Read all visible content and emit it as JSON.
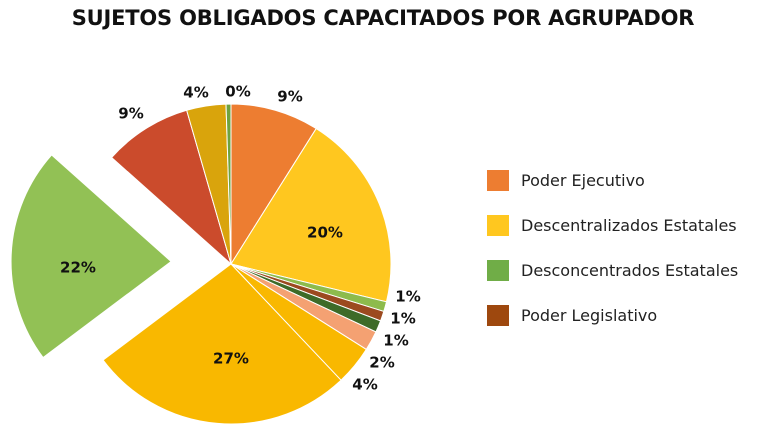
{
  "chart_data": {
    "type": "pie",
    "title": "SUJETOS OBLIGADOS CAPACITADOS POR AGRUPADOR",
    "slices": [
      {
        "label": "9%",
        "value": 9,
        "color": "#ED7D31"
      },
      {
        "label": "20%",
        "value": 20,
        "color": "#FFC71F"
      },
      {
        "label": "1%",
        "value": 1,
        "color": "#8DBB4C"
      },
      {
        "label": "1%",
        "value": 1,
        "color": "#9C4A1F"
      },
      {
        "label": "1%",
        "value": 1.2,
        "color": "#3E6B28"
      },
      {
        "label": "2%",
        "value": 2,
        "color": "#F4A172"
      },
      {
        "label": "4%",
        "value": 4,
        "color": "#F9B800"
      },
      {
        "label": "27%",
        "value": 27,
        "color": "#F9B800"
      },
      {
        "label": "22%",
        "value": 22,
        "color": "#92C155"
      },
      {
        "label": "9%",
        "value": 9,
        "color": "#CB4B2C"
      },
      {
        "label": "4%",
        "value": 4,
        "color": "#D9A40C"
      },
      {
        "label": "0%",
        "value": 0.5,
        "color": "#6FA33E"
      }
    ],
    "legend": [
      {
        "label": "Poder Ejecutivo",
        "color": "#ED7D31"
      },
      {
        "label": "Descentralizados Estatales",
        "color": "#FFC71F"
      },
      {
        "label": "Desconcentrados Estatales",
        "color": "#70AD47"
      },
      {
        "label": "Poder Legislativo",
        "color": "#9E480E"
      }
    ],
    "legend_position": "right"
  }
}
